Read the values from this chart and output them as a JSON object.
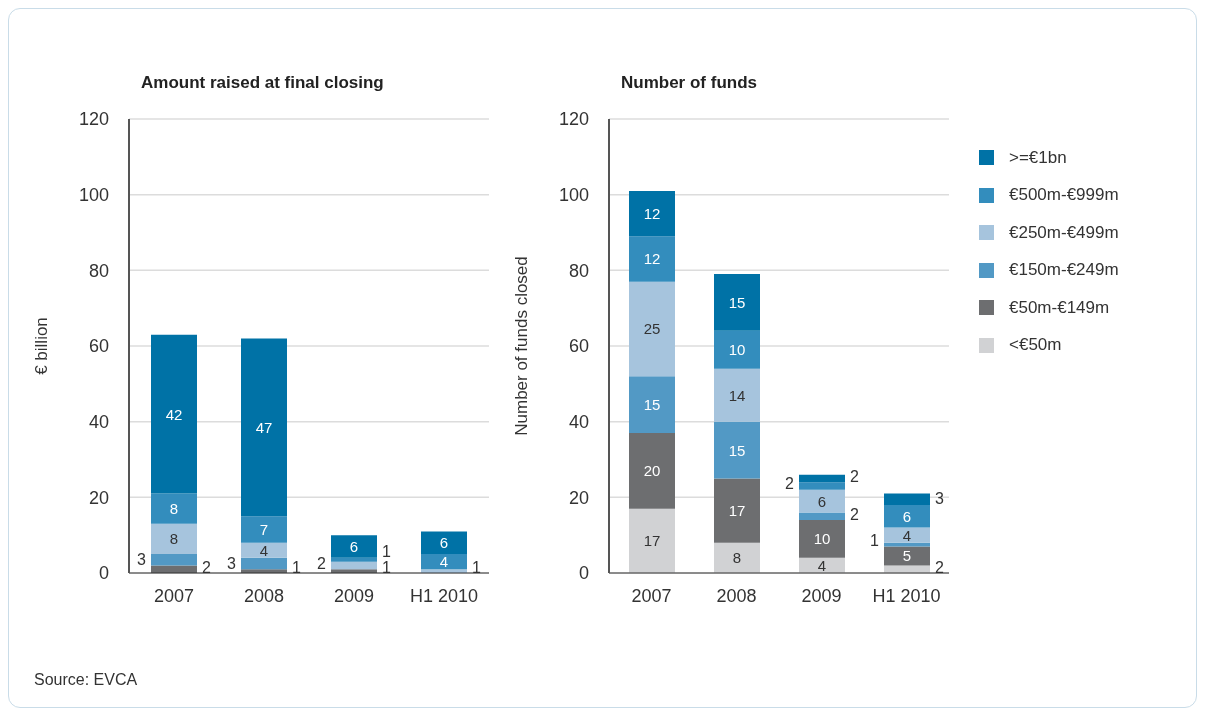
{
  "chart_data": [
    {
      "type": "bar",
      "title": "Amount raised at final closing",
      "ylabel": "€ billion",
      "categories": [
        "2007",
        "2008",
        "2009",
        "H1 2010"
      ],
      "stacked": true,
      "ylim": [
        0,
        120
      ],
      "yticks": [
        0,
        20,
        40,
        60,
        80,
        100,
        120
      ],
      "grid": "y",
      "legend": false,
      "data_labels": true,
      "annotations": [
        "Source: EVCA"
      ],
      "series": [
        {
          "color": "#d1d2d4",
          "values": [
            null,
            null,
            null,
            null
          ]
        },
        {
          "color": "#6d6e70",
          "values": [
            2,
            1,
            1,
            null
          ]
        },
        {
          "color": "#5299c5",
          "values": [
            3,
            3,
            null,
            null
          ]
        },
        {
          "color": "#a6c4dd",
          "values": [
            8,
            4,
            2,
            1
          ]
        },
        {
          "color": "#338dbd",
          "values": [
            8,
            7,
            1,
            4
          ]
        },
        {
          "color": "#0072a6",
          "values": [
            42,
            47,
            6,
            6
          ]
        }
      ]
    },
    {
      "type": "bar",
      "title": "Number of funds",
      "ylabel": "Number of funds closed",
      "categories": [
        "2007",
        "2008",
        "2009",
        "H1 2010"
      ],
      "stacked": true,
      "ylim": [
        0,
        120
      ],
      "yticks": [
        0,
        20,
        40,
        60,
        80,
        100,
        120
      ],
      "grid": "y",
      "legend": "right",
      "data_labels": true,
      "series": [
        {
          "name": "<€50m",
          "color": "#d1d2d4",
          "values": [
            17,
            8,
            4,
            2
          ]
        },
        {
          "name": "€50m-€149m",
          "color": "#6d6e70",
          "values": [
            20,
            17,
            10,
            5
          ]
        },
        {
          "name": "€150m-€249m",
          "color": "#5299c5",
          "values": [
            15,
            15,
            2,
            1
          ]
        },
        {
          "name": "€250m-€499m",
          "color": "#a6c4dd",
          "values": [
            25,
            14,
            6,
            4
          ]
        },
        {
          "name": "€500m-€999m",
          "color": "#338dbd",
          "values": [
            12,
            10,
            2,
            6
          ]
        },
        {
          "name": ">=€1bn",
          "color": "#0072a6",
          "values": [
            12,
            15,
            2,
            3
          ]
        }
      ]
    }
  ]
}
